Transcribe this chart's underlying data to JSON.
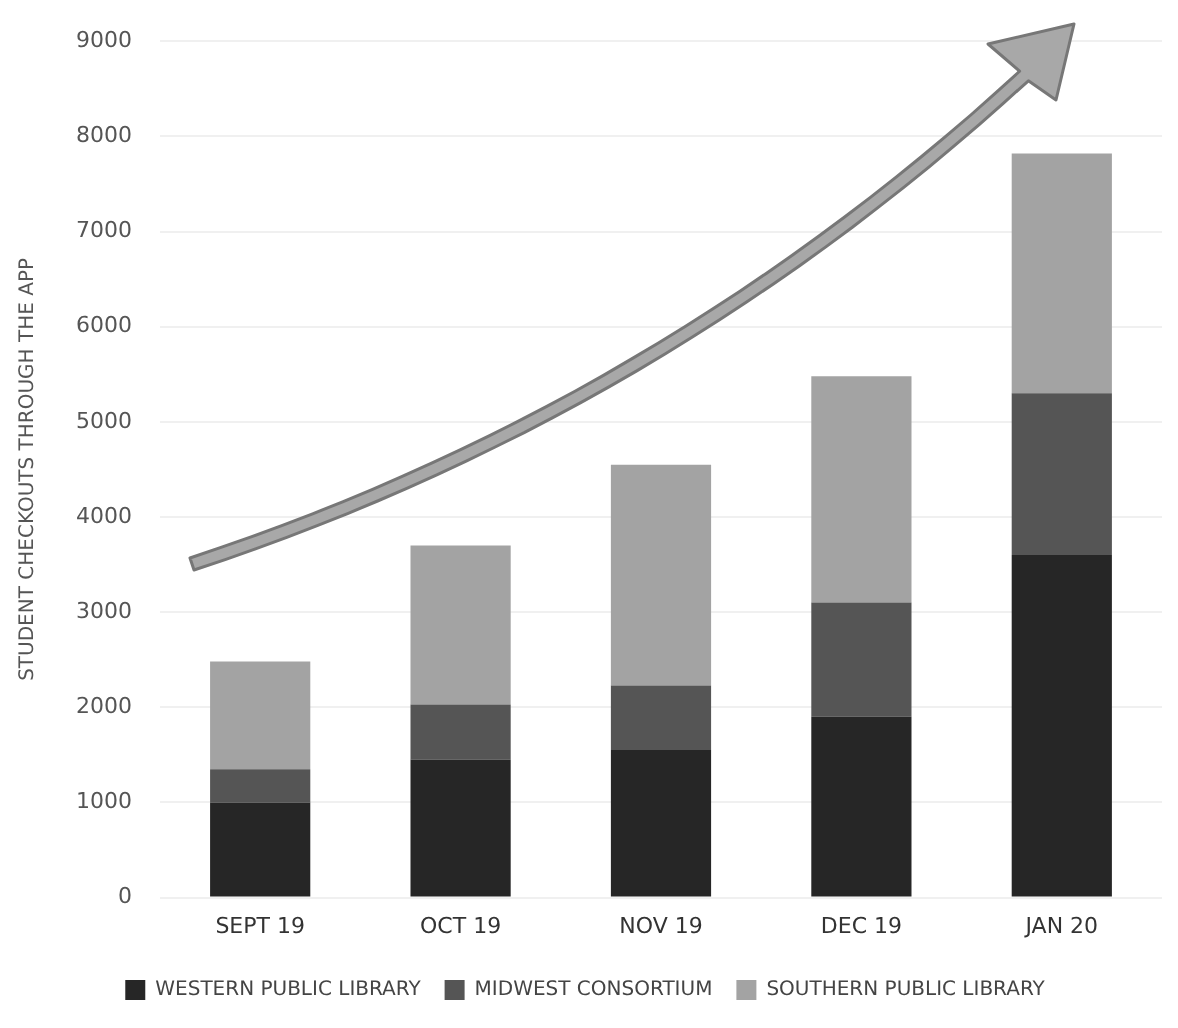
{
  "chart_data": {
    "type": "bar",
    "stacked": true,
    "ylabel": "STUDENT CHECKOUTS THROUGH THE APP",
    "categories": [
      "SEPT 19",
      "OCT 19",
      "NOV 19",
      "DEC 19",
      "JAN 20"
    ],
    "series": [
      {
        "name": "WESTERN PUBLIC LIBRARY",
        "color": "#262626",
        "values": [
          1000,
          1450,
          1550,
          1900,
          3600
        ]
      },
      {
        "name": "MIDWEST CONSORTIUM",
        "color": "#555555",
        "values": [
          350,
          580,
          680,
          1200,
          1700
        ]
      },
      {
        "name": "SOUTHERN PUBLIC LIBRARY",
        "color": "#a3a3a3",
        "values": [
          1130,
          1670,
          2320,
          2380,
          2520
        ]
      }
    ],
    "ylim": [
      0,
      9000
    ],
    "yticks": [
      0,
      1000,
      2000,
      3000,
      4000,
      5000,
      6000,
      7000,
      8000,
      9000
    ],
    "grid": "y",
    "legend": "bottom"
  }
}
